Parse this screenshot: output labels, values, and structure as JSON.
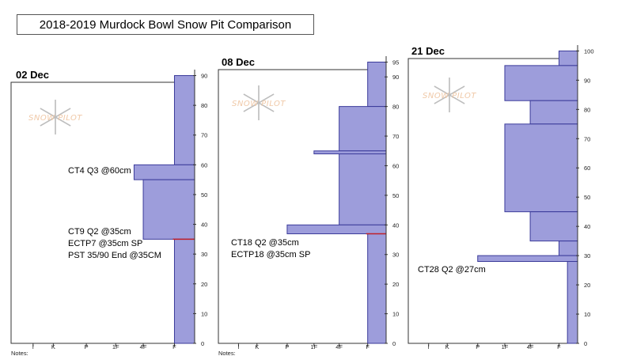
{
  "title": "2018-2019 Murdock Bowl Snow Pit Comparison",
  "logo_text": "SNOW PILOT",
  "colors": {
    "fill": "#9d9ddb",
    "stroke": "#3b3b9a",
    "marker": "#c0202a",
    "logo": "#bdbdbd"
  },
  "chart_data": [
    {
      "type": "bar",
      "date": "02 Dec",
      "hardness_labels": [
        "I",
        "K",
        "P",
        "1F",
        "4F",
        "F"
      ],
      "notes_label": "Notes:",
      "y_ticks": [
        0,
        10,
        20,
        30,
        40,
        50,
        60,
        70,
        80,
        90
      ],
      "ylim": [
        0,
        92
      ],
      "layers": [
        {
          "top": 90,
          "bottom": 60,
          "hardness": "F"
        },
        {
          "top": 60,
          "bottom": 55,
          "hardness": "4F+"
        },
        {
          "top": 55,
          "bottom": 35,
          "hardness": "4F"
        },
        {
          "top": 35,
          "bottom": 0,
          "hardness": "F"
        }
      ],
      "tests": [
        35
      ],
      "annotations": [
        {
          "lines": [
            "CT4 Q3 @60cm"
          ]
        },
        {
          "lines": [
            "CT9 Q2 @35cm",
            "ECTP7 @35cm SP",
            "PST 35/90 End @35CM"
          ]
        }
      ]
    },
    {
      "type": "bar",
      "date": "08 Dec",
      "hardness_labels": [
        "I",
        "K",
        "P",
        "1F",
        "4F",
        "F"
      ],
      "notes_label": "Notes:",
      "y_ticks": [
        0,
        10,
        20,
        30,
        40,
        50,
        60,
        70,
        80,
        90,
        95
      ],
      "ylim": [
        0,
        97
      ],
      "layers": [
        {
          "top": 95,
          "bottom": 80,
          "hardness": "F"
        },
        {
          "top": 80,
          "bottom": 65,
          "hardness": "4F"
        },
        {
          "top": 65,
          "bottom": 64,
          "hardness": "1F"
        },
        {
          "top": 64,
          "bottom": 40,
          "hardness": "4F"
        },
        {
          "top": 40,
          "bottom": 37,
          "hardness": "P"
        },
        {
          "top": 37,
          "bottom": 0,
          "hardness": "F"
        }
      ],
      "tests": [
        37
      ],
      "annotations": [
        {
          "lines": [
            "CT18 Q2 @35cm",
            "ECTP18 @35cm SP"
          ]
        }
      ]
    },
    {
      "type": "bar",
      "date": "21 Dec",
      "hardness_labels": [
        "I",
        "K",
        "P",
        "1F",
        "4F",
        "F"
      ],
      "notes_label": "",
      "y_ticks": [
        0,
        10,
        20,
        30,
        40,
        50,
        60,
        70,
        80,
        90,
        100
      ],
      "ylim": [
        0,
        102
      ],
      "layers": [
        {
          "top": 100,
          "bottom": 95,
          "hardness": "F"
        },
        {
          "top": 95,
          "bottom": 83,
          "hardness": "1F"
        },
        {
          "top": 83,
          "bottom": 75,
          "hardness": "4F"
        },
        {
          "top": 75,
          "bottom": 45,
          "hardness": "1F"
        },
        {
          "top": 45,
          "bottom": 35,
          "hardness": "4F"
        },
        {
          "top": 35,
          "bottom": 30,
          "hardness": "F"
        },
        {
          "top": 30,
          "bottom": 28,
          "hardness": "P"
        },
        {
          "top": 28,
          "bottom": 0,
          "hardness": "F-"
        }
      ],
      "tests": [],
      "annotations": [
        {
          "lines": [
            "CT28 Q2 @27cm"
          ]
        }
      ]
    }
  ]
}
